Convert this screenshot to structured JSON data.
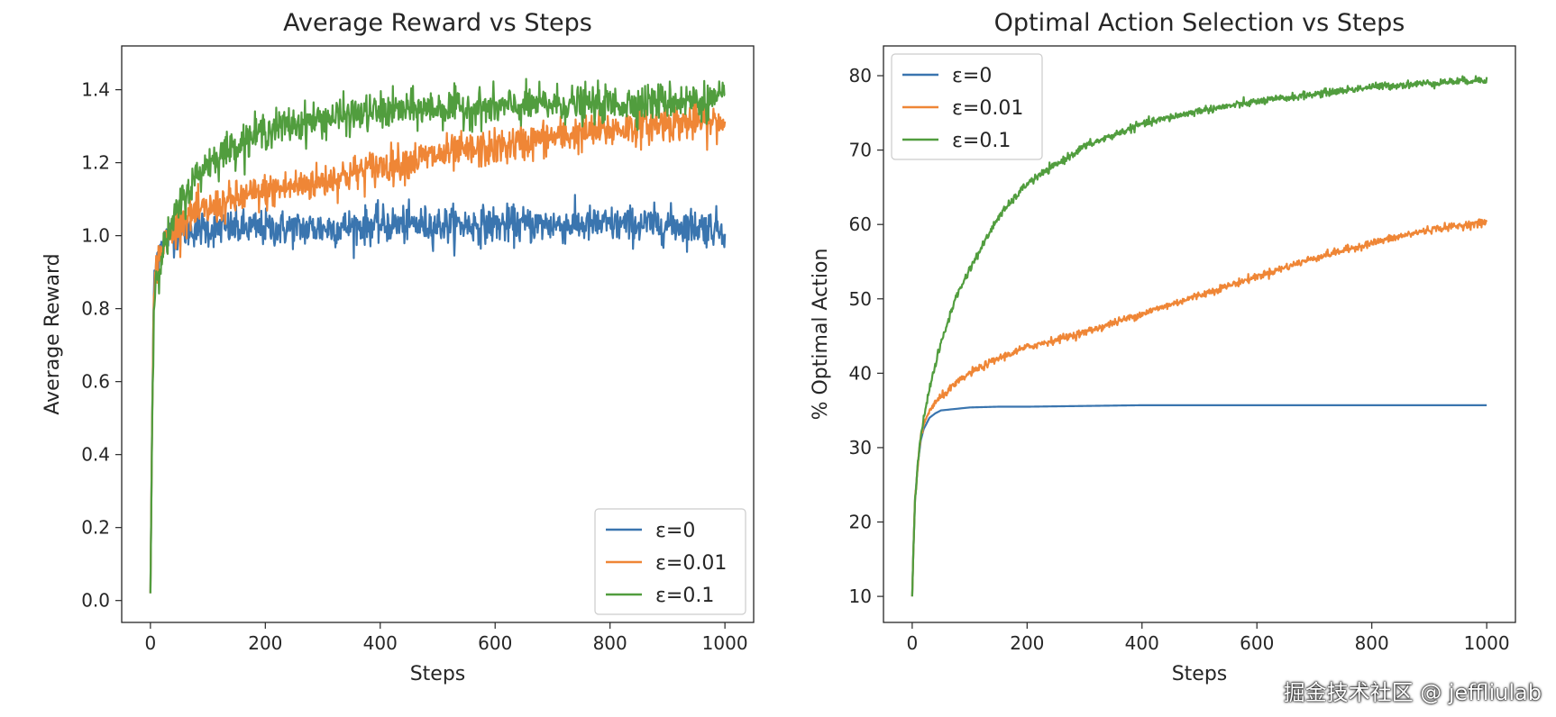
{
  "chart_data": [
    {
      "type": "line",
      "title": "Average Reward vs Steps",
      "xlabel": "Steps",
      "ylabel": "Average Reward",
      "xlim": [
        -50,
        1050
      ],
      "ylim": [
        -0.06,
        1.52
      ],
      "xticks": [
        0,
        200,
        400,
        600,
        800,
        1000
      ],
      "yticks": [
        0.0,
        0.2,
        0.4,
        0.6,
        0.8,
        1.0,
        1.2,
        1.4
      ],
      "ytick_labels": [
        "0.0",
        "0.2",
        "0.4",
        "0.6",
        "0.8",
        "1.0",
        "1.2",
        "1.4"
      ],
      "grid": false,
      "legend_position": "lower-right",
      "noise": "high",
      "series": [
        {
          "name": "ε=0",
          "color": "#3a75af",
          "x": [
            0,
            3,
            6,
            10,
            15,
            20,
            30,
            50,
            75,
            100,
            150,
            200,
            300,
            400,
            500,
            600,
            700,
            800,
            900,
            1000
          ],
          "y": [
            0.02,
            0.5,
            0.85,
            0.93,
            0.96,
            0.98,
            1.0,
            1.01,
            1.02,
            1.02,
            1.02,
            1.02,
            1.02,
            1.03,
            1.03,
            1.03,
            1.03,
            1.03,
            1.03,
            1.02
          ]
        },
        {
          "name": "ε=0.01",
          "color": "#ef8636",
          "x": [
            0,
            3,
            6,
            10,
            15,
            20,
            30,
            50,
            75,
            100,
            150,
            200,
            300,
            400,
            500,
            600,
            700,
            800,
            900,
            1000
          ],
          "y": [
            0.02,
            0.5,
            0.82,
            0.91,
            0.94,
            0.96,
            0.99,
            1.04,
            1.06,
            1.07,
            1.1,
            1.12,
            1.15,
            1.19,
            1.22,
            1.24,
            1.27,
            1.29,
            1.31,
            1.31
          ]
        },
        {
          "name": "ε=0.1",
          "color": "#519d3e",
          "x": [
            0,
            3,
            6,
            10,
            15,
            20,
            30,
            50,
            75,
            100,
            150,
            200,
            300,
            400,
            500,
            600,
            700,
            800,
            900,
            1000
          ],
          "y": [
            0.02,
            0.48,
            0.8,
            0.88,
            0.92,
            0.95,
            0.99,
            1.08,
            1.15,
            1.2,
            1.25,
            1.29,
            1.32,
            1.34,
            1.35,
            1.35,
            1.36,
            1.36,
            1.37,
            1.37
          ]
        }
      ]
    },
    {
      "type": "line",
      "title": "Optimal Action Selection vs Steps",
      "xlabel": "Steps",
      "ylabel": "% Optimal Action",
      "xlim": [
        -50,
        1050
      ],
      "ylim": [
        6.5,
        84
      ],
      "xticks": [
        0,
        200,
        400,
        600,
        800,
        1000
      ],
      "yticks": [
        10,
        20,
        30,
        40,
        50,
        60,
        70,
        80
      ],
      "grid": false,
      "legend_position": "upper-left",
      "noise": "low",
      "series": [
        {
          "name": "ε=0",
          "color": "#3a75af",
          "x": [
            0,
            2,
            5,
            10,
            15,
            20,
            30,
            40,
            50,
            75,
            100,
            150,
            200,
            300,
            400,
            500,
            600,
            700,
            800,
            900,
            1000
          ],
          "y": [
            10,
            16,
            23,
            28,
            31,
            32.5,
            34,
            34.6,
            35,
            35.2,
            35.4,
            35.5,
            35.5,
            35.6,
            35.7,
            35.7,
            35.7,
            35.7,
            35.7,
            35.7,
            35.7
          ]
        },
        {
          "name": "ε=0.01",
          "color": "#ef8636",
          "x": [
            0,
            2,
            5,
            10,
            15,
            20,
            30,
            40,
            50,
            75,
            100,
            150,
            200,
            300,
            400,
            500,
            600,
            700,
            800,
            900,
            1000
          ],
          "y": [
            10,
            16,
            23,
            28,
            31.5,
            33,
            35,
            36,
            36.8,
            38.5,
            40,
            42,
            43.5,
            45.5,
            48,
            50.5,
            53,
            55.5,
            57.5,
            59.3,
            60.3
          ]
        },
        {
          "name": "ε=0.1",
          "color": "#519d3e",
          "x": [
            0,
            2,
            5,
            10,
            15,
            20,
            30,
            40,
            50,
            75,
            100,
            150,
            200,
            300,
            400,
            500,
            600,
            700,
            800,
            900,
            1000
          ],
          "y": [
            10,
            16,
            23,
            28,
            31.5,
            34,
            38,
            41,
            44,
            50,
            54,
            61,
            65.5,
            70.5,
            73.5,
            75.3,
            76.5,
            77.5,
            78.5,
            79,
            79.5
          ]
        }
      ]
    }
  ],
  "watermark": "掘金技术社区 @ jeffliulab"
}
